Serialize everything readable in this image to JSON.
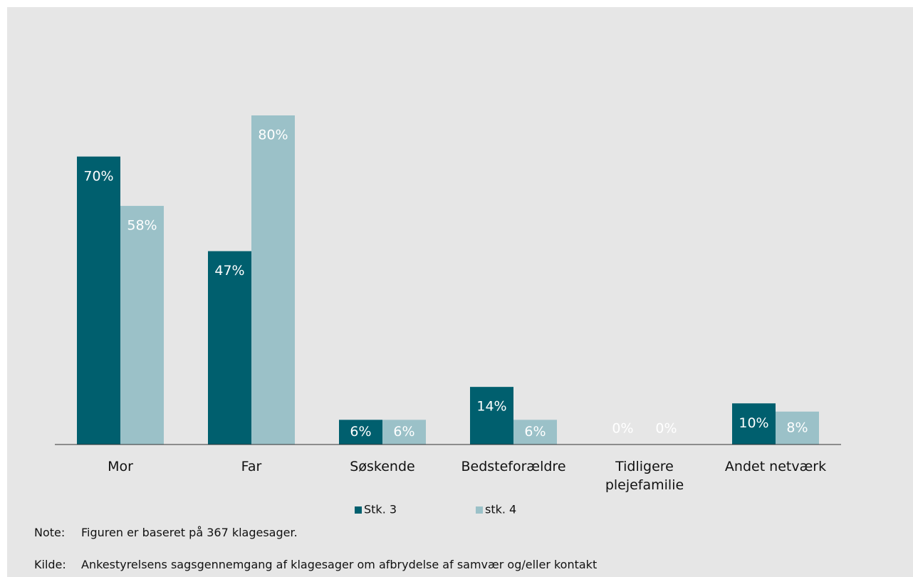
{
  "chart_data": {
    "type": "bar",
    "categories": [
      "Mor",
      "Far",
      "Søskende",
      "Bedsteforældre",
      "Tidligere plejefamilie",
      "Andet netværk"
    ],
    "series": [
      {
        "name": "Stk. 3",
        "color": "#005f6e",
        "values": [
          70,
          47,
          6,
          14,
          0,
          10
        ],
        "value_labels": [
          "70%",
          "47%",
          "6%",
          "14%",
          "0%",
          "10%"
        ]
      },
      {
        "name": "stk. 4",
        "color": "#9bc1c8",
        "values": [
          58,
          80,
          6,
          6,
          0,
          8
        ],
        "value_labels": [
          "58%",
          "80%",
          "6%",
          "6%",
          "0%",
          "8%"
        ]
      }
    ],
    "legend": "bottom"
  },
  "notes": [
    {
      "label": "Note:",
      "text": "Figuren er baseret på 367 klagesager."
    },
    {
      "label": "Kilde:",
      "text": "Ankestyrelsens sagsgennemgang af klagesager om afbrydelse af samvær og/eller kontakt"
    }
  ]
}
